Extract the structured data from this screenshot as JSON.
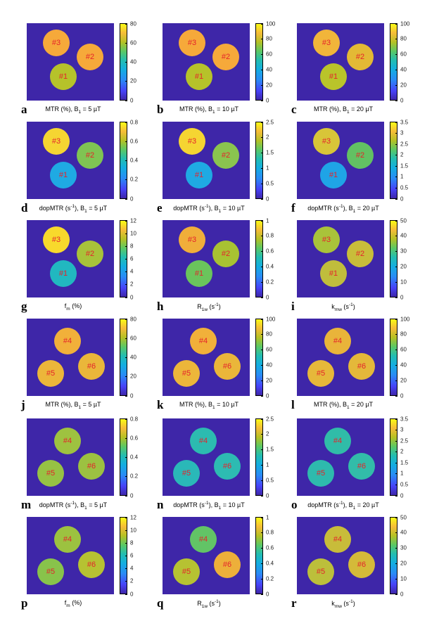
{
  "figure": {
    "panels": [
      {
        "letter": "a",
        "cap": "MTR (%), B",
        "sub": "1",
        "tail": " = 5 µT",
        "sup": "",
        "ticks": [
          "0",
          "20",
          "40",
          "60",
          "80"
        ],
        "labels": [
          "#3",
          "#2",
          "#1"
        ],
        "colors": [
          "#f6a93a",
          "#f6a93a",
          "#b6c22a"
        ],
        "set": "A"
      },
      {
        "letter": "b",
        "cap": "MTR (%), B",
        "sub": "1",
        "tail": " = 10 µT",
        "sup": "",
        "ticks": [
          "0",
          "20",
          "40",
          "60",
          "80",
          "100"
        ],
        "labels": [
          "#3",
          "#2",
          "#1"
        ],
        "colors": [
          "#f6a93a",
          "#f6a93a",
          "#b6c22a"
        ],
        "set": "A"
      },
      {
        "letter": "c",
        "cap": "MTR (%), B",
        "sub": "1",
        "tail": " = 20 µT",
        "sup": "",
        "ticks": [
          "0",
          "20",
          "40",
          "60",
          "80",
          "100"
        ],
        "labels": [
          "#3",
          "#2",
          "#1"
        ],
        "colors": [
          "#f1b53a",
          "#e3b935",
          "#b9c42a"
        ],
        "set": "A"
      },
      {
        "letter": "d",
        "cap": "dopMTR (s",
        "sup": "-1",
        "mid": "), B",
        "sub": "1",
        "tail": " = 5 µT",
        "ticks": [
          "0",
          "0.2",
          "0.4",
          "0.6",
          "0.8"
        ],
        "labels": [
          "#3",
          "#2",
          "#1"
        ],
        "colors": [
          "#f5d532",
          "#7fc453",
          "#1faae3"
        ],
        "set": "A"
      },
      {
        "letter": "e",
        "cap": "dopMTR (s",
        "sup": "-1",
        "mid": "), B",
        "sub": "1",
        "tail": " = 10 µT",
        "ticks": [
          "0",
          "0.5",
          "1",
          "1.5",
          "2",
          "2.5"
        ],
        "labels": [
          "#3",
          "#2",
          "#1"
        ],
        "colors": [
          "#f5d532",
          "#8ac44f",
          "#1faae3"
        ],
        "set": "A"
      },
      {
        "letter": "f",
        "cap": "dopMTR (s",
        "sup": "-1",
        "mid": "), B",
        "sub": "1",
        "tail": " = 20 µT",
        "ticks": [
          "0",
          "0.5",
          "1",
          "1.5",
          "2",
          "2.5",
          "3",
          "3.5"
        ],
        "labels": [
          "#3",
          "#2",
          "#1"
        ],
        "colors": [
          "#d8c538",
          "#62c163",
          "#1fa4e6"
        ],
        "set": "A"
      },
      {
        "letter": "g",
        "cap": "f",
        "sub": "m",
        "tail": " (%)",
        "sup": "",
        "ticks": [
          "0",
          "2",
          "4",
          "6",
          "8",
          "10",
          "12"
        ],
        "labels": [
          "#3",
          "#2",
          "#1"
        ],
        "colors": [
          "#f8d92c",
          "#a8c23a",
          "#21b8c0"
        ],
        "set": "A"
      },
      {
        "letter": "h",
        "cap": "R",
        "sub": "1w",
        "tail": " (s",
        "sup": "-1",
        "end": ")",
        "ticks": [
          "0",
          "0.2",
          "0.4",
          "0.6",
          "0.8",
          "1"
        ],
        "labels": [
          "#3",
          "#2",
          "#1"
        ],
        "colors": [
          "#f0ae3a",
          "#a8c232",
          "#6ac45c"
        ],
        "set": "A"
      },
      {
        "letter": "i",
        "cap": "k",
        "sub": "mw",
        "tail": " (s",
        "sup": "-1",
        "end": ")",
        "ticks": [
          "0",
          "10",
          "20",
          "30",
          "40",
          "50"
        ],
        "labels": [
          "#3",
          "#2",
          "#1"
        ],
        "colors": [
          "#a9c33a",
          "#c8bd3a",
          "#c0bd3c"
        ],
        "set": "A"
      },
      {
        "letter": "j",
        "cap": "MTR (%), B",
        "sub": "1",
        "tail": " = 5 µT",
        "sup": "",
        "ticks": [
          "0",
          "20",
          "40",
          "60",
          "80"
        ],
        "labels": [
          "#4",
          "#5",
          "#6"
        ],
        "colors": [
          "#f1b03a",
          "#ecb63a",
          "#eab63a"
        ],
        "set": "B"
      },
      {
        "letter": "k",
        "cap": "MTR (%), B",
        "sub": "1",
        "tail": " = 10 µT",
        "sup": "",
        "ticks": [
          "0",
          "20",
          "40",
          "60",
          "80",
          "100"
        ],
        "labels": [
          "#4",
          "#5",
          "#6"
        ],
        "colors": [
          "#f1b03a",
          "#ecb63a",
          "#eab63a"
        ],
        "set": "B"
      },
      {
        "letter": "l",
        "cap": "MTR (%), B",
        "sub": "1",
        "tail": " = 20 µT",
        "sup": "",
        "ticks": [
          "0",
          "20",
          "40",
          "60",
          "80",
          "100"
        ],
        "labels": [
          "#4",
          "#5",
          "#6"
        ],
        "colors": [
          "#e9b43a",
          "#e6b83a",
          "#e4b83a"
        ],
        "set": "B"
      },
      {
        "letter": "m",
        "cap": "dopMTR (s",
        "sup": "-1",
        "mid": "), B",
        "sub": "1",
        "tail": " = 5 µT",
        "ticks": [
          "0",
          "0.2",
          "0.4",
          "0.6",
          "0.8"
        ],
        "labels": [
          "#4",
          "#5",
          "#6"
        ],
        "colors": [
          "#9ec240",
          "#96c244",
          "#9cc141"
        ],
        "set": "B"
      },
      {
        "letter": "n",
        "cap": "dopMTR (s",
        "sup": "-1",
        "mid": "), B",
        "sub": "1",
        "tail": " = 10 µT",
        "ticks": [
          "0",
          "0.5",
          "1",
          "1.5",
          "2",
          "2.5"
        ],
        "labels": [
          "#4",
          "#5",
          "#6"
        ],
        "colors": [
          "#2cbbb0",
          "#2ab8b8",
          "#2dbbb2"
        ],
        "set": "B"
      },
      {
        "letter": "o",
        "cap": "dopMTR (s",
        "sup": "-1",
        "mid": "), B",
        "sub": "1",
        "tail": " = 20 µT",
        "ticks": [
          "0",
          "0.5",
          "1",
          "1.5",
          "2",
          "2.5",
          "3",
          "3.5"
        ],
        "labels": [
          "#4",
          "#5",
          "#6"
        ],
        "colors": [
          "#30bca8",
          "#2ebaad",
          "#32bca9"
        ],
        "set": "B"
      },
      {
        "letter": "p",
        "cap": "f",
        "sub": "m",
        "tail": " (%)",
        "sup": "",
        "ticks": [
          "0",
          "2",
          "4",
          "6",
          "8",
          "10",
          "12"
        ],
        "labels": [
          "#4",
          "#5",
          "#6"
        ],
        "colors": [
          "#9cc240",
          "#88c34b",
          "#b6c232"
        ],
        "set": "B"
      },
      {
        "letter": "q",
        "cap": "R",
        "sub": "1w",
        "tail": " (s",
        "sup": "-1",
        "end": ")",
        "ticks": [
          "0",
          "0.2",
          "0.4",
          "0.6",
          "0.8",
          "1"
        ],
        "labels": [
          "#4",
          "#5",
          "#6"
        ],
        "colors": [
          "#62c466",
          "#b6c232",
          "#edaf3a"
        ],
        "set": "B"
      },
      {
        "letter": "r",
        "cap": "k",
        "sub": "mw",
        "tail": " (s",
        "sup": "-1",
        "end": ")",
        "ticks": [
          "0",
          "10",
          "20",
          "30",
          "40",
          "50"
        ],
        "labels": [
          "#4",
          "#5",
          "#6"
        ],
        "colors": [
          "#c8bc3a",
          "#bcbf3b",
          "#d4ba39"
        ],
        "set": "B"
      }
    ]
  }
}
